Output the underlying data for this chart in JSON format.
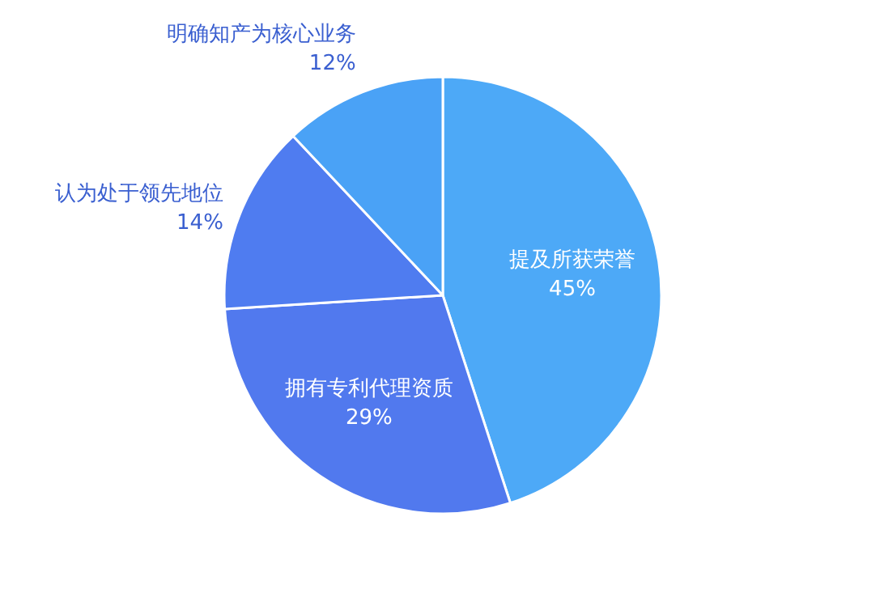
{
  "chart_data": {
    "type": "pie",
    "categories": [
      "提及所获荣誉",
      "拥有专利代理资质",
      "认为处于领先地位",
      "明确知产为核心业务"
    ],
    "values": [
      45,
      29,
      14,
      12
    ],
    "value_labels": [
      "45%",
      "29%",
      "14%",
      "12%"
    ],
    "colors": [
      "#4da9f7",
      "#5179ee",
      "#4f7cf0",
      "#4aa2f6"
    ],
    "legend": false
  }
}
